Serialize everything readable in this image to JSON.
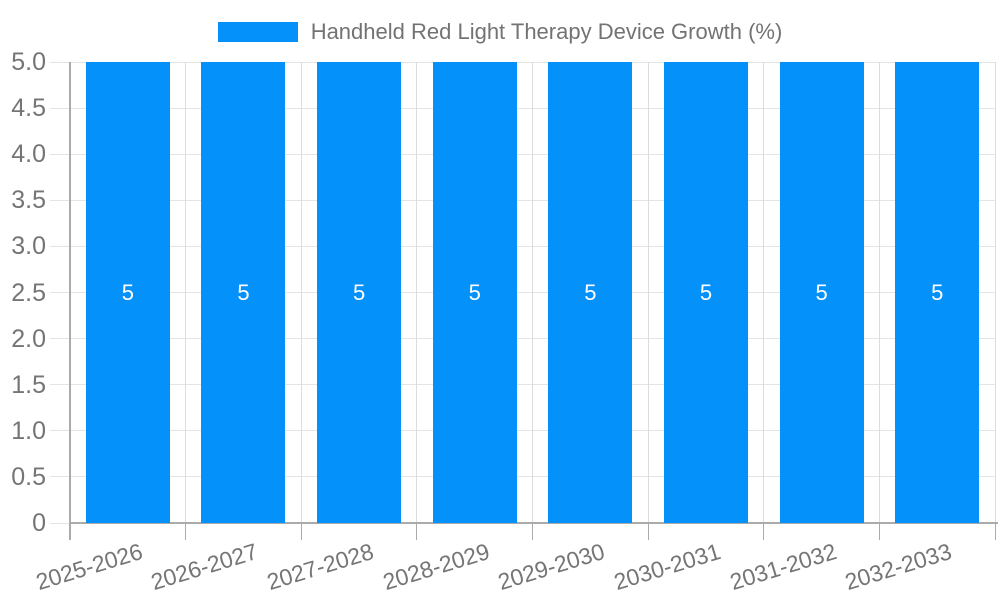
{
  "legend": {
    "series_label": "Handheld Red Light Therapy Device Growth (%)"
  },
  "colors": {
    "bar": "#0591FA",
    "legend_text": "#737373",
    "tick_text": "#757575",
    "bar_label_text": "#FFFFFF",
    "grid_h": "#E4E4E4",
    "grid_v": "#DCDCDC",
    "axis": "#ABABAB"
  },
  "chart_data": {
    "type": "bar",
    "title": "Handheld Red Light Therapy Device Growth (%)",
    "categories": [
      "2025-2026",
      "2026-2027",
      "2027-2028",
      "2028-2029",
      "2029-2030",
      "2030-2031",
      "2031-2032",
      "2032-2033"
    ],
    "values": [
      5,
      5,
      5,
      5,
      5,
      5,
      5,
      5
    ],
    "bar_value_labels": [
      "5",
      "5",
      "5",
      "5",
      "5",
      "5",
      "5",
      "5"
    ],
    "xlabel": "",
    "ylabel": "",
    "ylim": [
      0,
      5
    ],
    "ytick_interval": 0.5,
    "ytick_labels": [
      "0",
      "0.5",
      "1.0",
      "1.5",
      "2.0",
      "2.5",
      "3.0",
      "3.5",
      "4.0",
      "4.5",
      "5.0"
    ],
    "grid": "horizontal and vertical category boundaries",
    "legend_position": "top-center",
    "x_tick_label_rotation_deg": -17
  }
}
